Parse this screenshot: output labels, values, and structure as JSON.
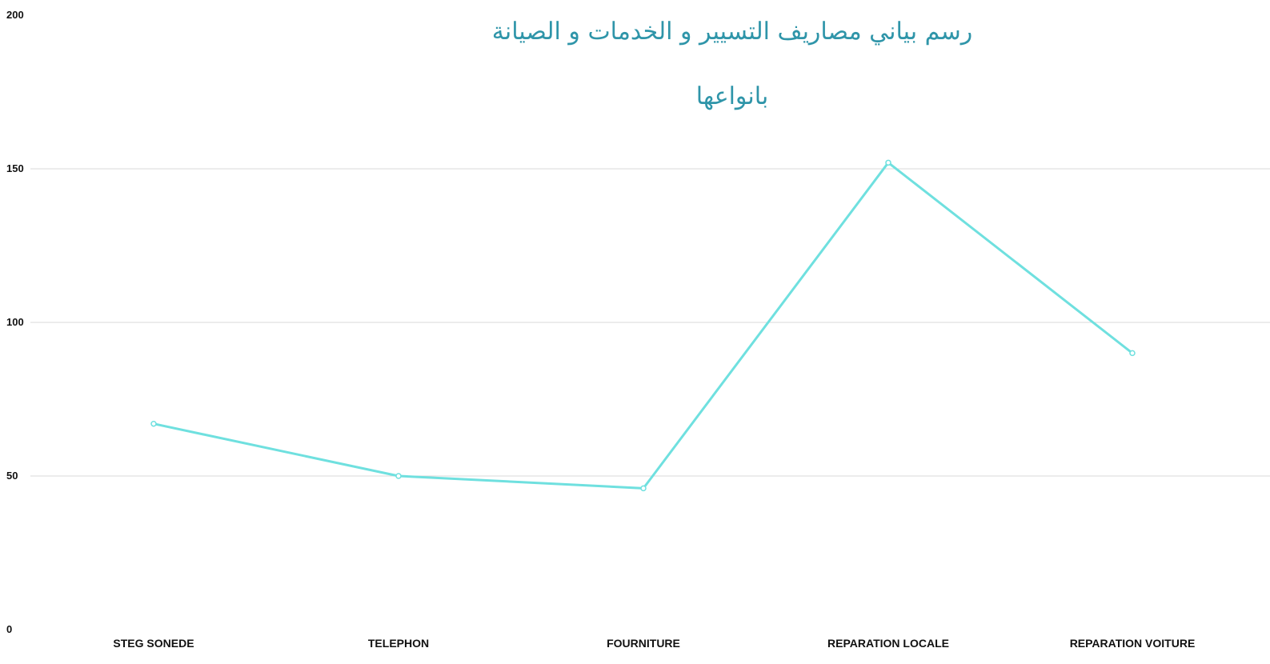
{
  "chart_data": {
    "type": "line",
    "title": "رسم بياني مصاريف التسيير  و  الخدمات  و  الصيانة",
    "subtitle": "بانواعها",
    "categories": [
      "STEG SONEDE",
      "TELEPHON",
      "FOURNITURE",
      "REPARATION LOCALE",
      "REPARATION VOITURE"
    ],
    "series": [
      {
        "values": [
          67,
          50,
          46,
          152,
          90
        ],
        "color": "#6fe0df"
      }
    ],
    "xlabel": "",
    "ylabel": "",
    "ylim": [
      0,
      200
    ],
    "yticks": [
      0,
      50,
      100,
      150,
      200
    ],
    "grid": true,
    "legend": "none"
  }
}
